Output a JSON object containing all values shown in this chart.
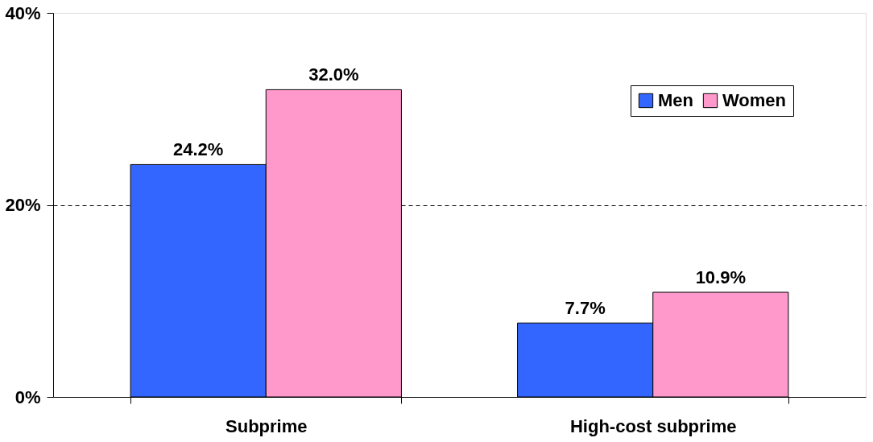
{
  "chart_data": {
    "type": "bar",
    "categories": [
      "Subprime",
      "High-cost subprime"
    ],
    "series": [
      {
        "name": "Men",
        "color": "#3366ff",
        "values": [
          24.2,
          7.7
        ],
        "value_labels": [
          "24.2%",
          "7.7%"
        ]
      },
      {
        "name": "Women",
        "color": "#ff99cc",
        "values": [
          32.0,
          10.9
        ],
        "value_labels": [
          "32.0%",
          "10.9%"
        ]
      }
    ],
    "ylim": [
      0,
      40
    ],
    "yticks": [
      {
        "value": 0,
        "label": "0%"
      },
      {
        "value": 20,
        "label": "20%"
      },
      {
        "value": 40,
        "label": "40%"
      }
    ],
    "grid": "y",
    "line_style": "dashed",
    "legend": "top right"
  }
}
